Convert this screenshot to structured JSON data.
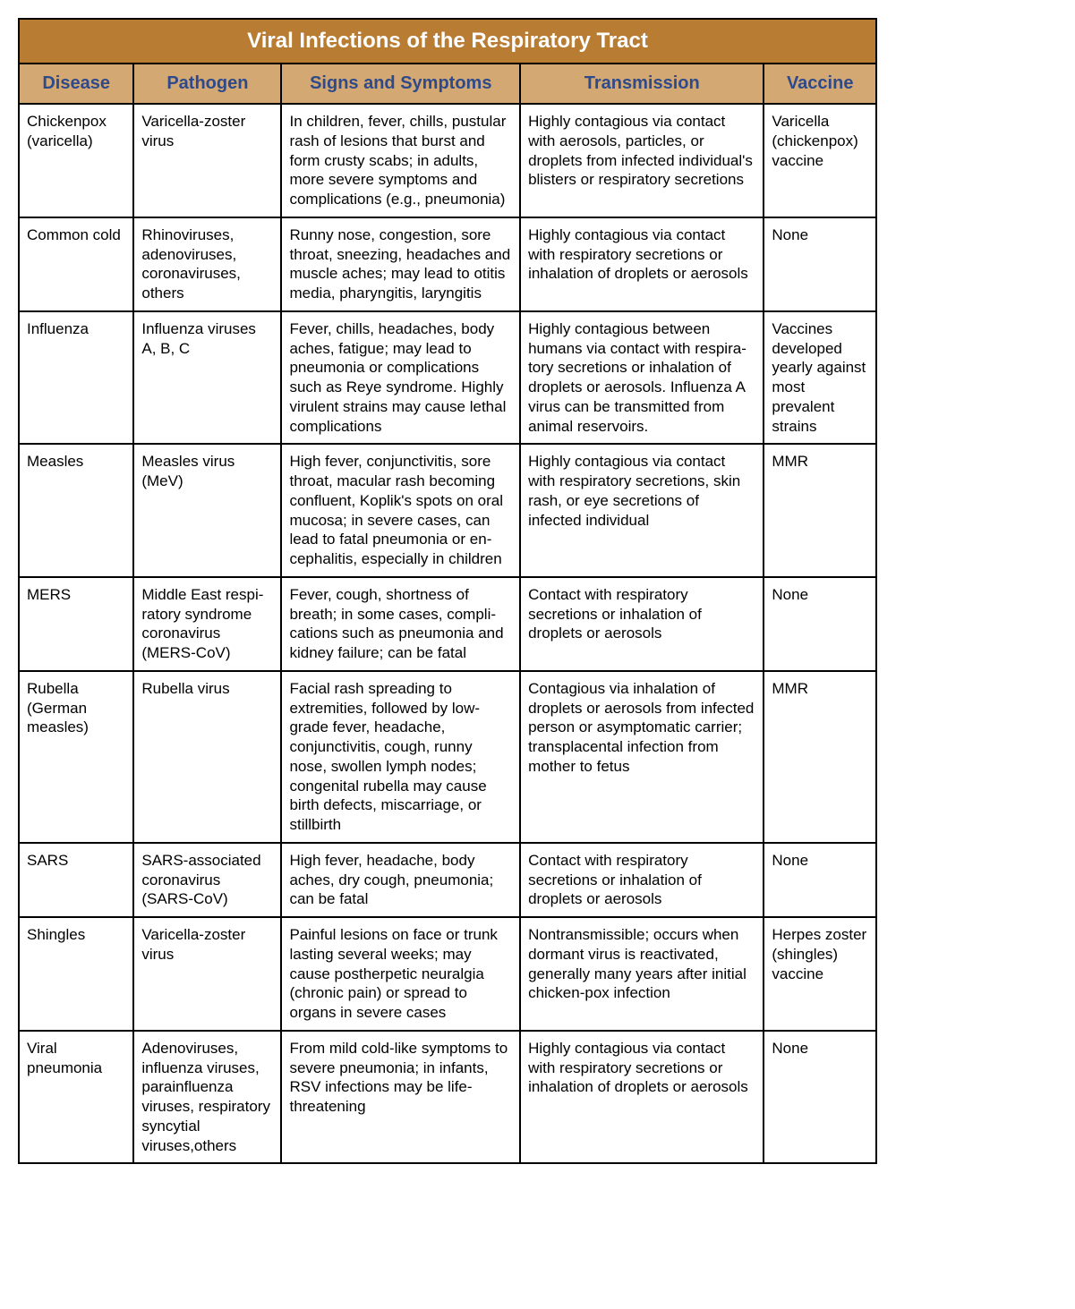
{
  "title": "Viral Infections of the Respiratory Tract",
  "title_bg": "#b97c33",
  "title_color": "#ffffff",
  "header_bg": "#d3a873",
  "header_color": "#2e4a8a",
  "border_color": "#000000",
  "columns": [
    {
      "key": "disease",
      "label": "Disease"
    },
    {
      "key": "pathogen",
      "label": "Pathogen"
    },
    {
      "key": "signs",
      "label": "Signs and Symptoms"
    },
    {
      "key": "trans",
      "label": "Transmission"
    },
    {
      "key": "vaccine",
      "label": "Vaccine"
    }
  ],
  "rows": [
    {
      "disease": "Chickenpox (varicella)",
      "pathogen": "Varicella-zoster virus",
      "signs": "In children, fever, chills, pustular rash of lesions that burst and form crusty scabs; in adults, more severe symptoms and complications (e.g., pneumonia)",
      "trans": "Highly contagious via contact with aerosols, particles, or droplets from infected individual's blisters or respiratory secretions",
      "vaccine": "Varicella (chickenpox) vaccine"
    },
    {
      "disease": "Common cold",
      "pathogen": "Rhinoviruses, adenoviruses, coronaviruses, others",
      "signs": "Runny nose, congestion, sore throat, sneezing, headaches and muscle aches; may lead to otitis media, pharyngitis, laryngitis",
      "trans": "Highly contagious via contact with respiratory secretions or inhalation of droplets or aerosols",
      "vaccine": "None"
    },
    {
      "disease": "Influenza",
      "pathogen": "Influenza viruses A, B, C",
      "signs": "Fever, chills, headaches, body aches, fatigue; may lead to pneumonia or complications such as Reye syndrome. Highly virulent strains may cause lethal complications",
      "trans": "Highly contagious between humans via contact with respira­tory secretions or inhalation of droplets or aerosols. Influenza A virus can be transmitted from animal reservoirs.",
      "vaccine": "Vaccines developed yearly against most prevalent strains"
    },
    {
      "disease": "Measles",
      "pathogen": "Measles virus (MeV)",
      "signs": "High fever, conjunctivitis, sore throat, macular rash becoming confluent, Koplik's spots on oral mucosa; in severe cases, can lead to fatal pneumonia or en­cephalitis, especially in children",
      "trans": "Highly contagious via contact with respiratory secretions, skin rash, or eye secretions of infected individual",
      "vaccine": "MMR"
    },
    {
      "disease": "MERS",
      "pathogen": "Middle East respi­ratory syndrome coronavirus (MERS-CoV)",
      "signs": "Fever, cough, shortness of breath; in some cases, compli­cations such as pneumonia and kidney failure; can be fatal",
      "trans": "Contact with respiratory secretions or inhalation of droplets or aerosols",
      "vaccine": "None"
    },
    {
      "disease": "Rubella (German measles)",
      "pathogen": "Rubella virus",
      "signs": "Facial rash spreading to extremities, followed by low-grade fever, headache, conjunctivitis, cough, runny nose, swollen lymph nodes; congenital rubella may cause birth defects, miscarriage, or stillbirth",
      "trans": "Contagious via inhalation of droplets or aerosols from infected person or asymptomatic carrier; transplacental infection from mother to fetus",
      "vaccine": "MMR"
    },
    {
      "disease": "SARS",
      "pathogen": "SARS-associated coronavirus (SARS-CoV)",
      "signs": "High fever, headache, body aches, dry cough, pneumonia; can be fatal",
      "trans": "Contact with respiratory secretions or inhalation of droplets or aerosols",
      "vaccine": "None"
    },
    {
      "disease": "Shingles",
      "pathogen": "Varicella-zoster virus",
      "signs": "Painful lesions on face or trunk lasting several weeks; may cause postherpetic neuralgia (chronic pain) or spread to organs in severe cases",
      "trans": "Nontransmissible; occurs when dormant virus is reactivated, generally many years after initial chicken-pox infection",
      "vaccine": "Herpes zoster (shingles) vaccine"
    },
    {
      "disease": "Viral pneumonia",
      "pathogen": "Adenoviruses, influenza viruses, parainfluenza viruses, respira­tory syncytial viruses,others",
      "signs": "From mild cold-like symptoms to severe pneumonia; in infants, RSV infections may be life-threatening",
      "trans": "Highly contagious via contact with respiratory secretions or inhalation of droplets or aerosols",
      "vaccine": "None"
    }
  ]
}
